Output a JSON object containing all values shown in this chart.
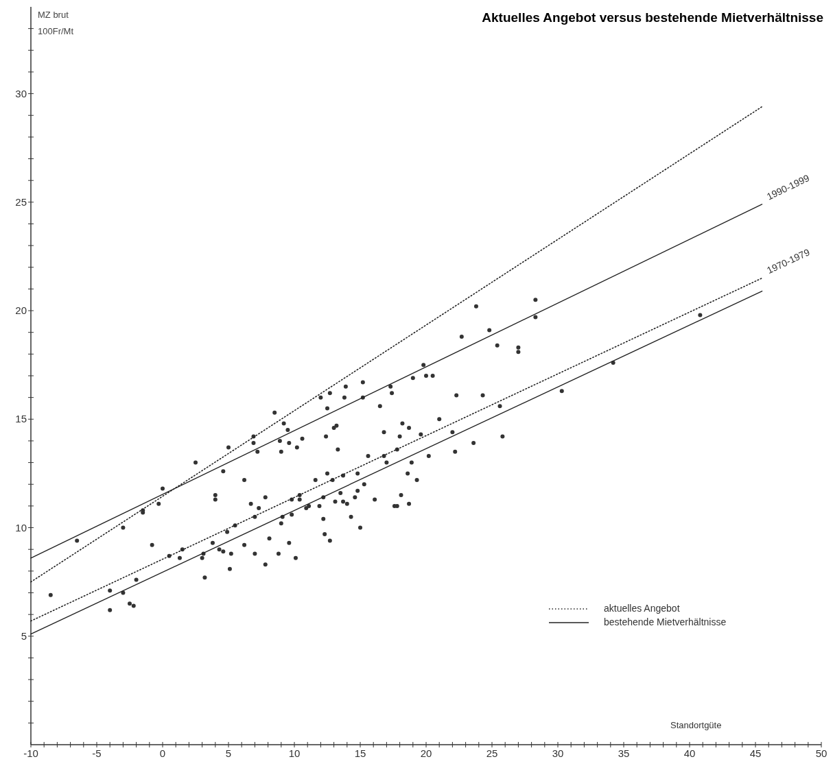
{
  "chart_data": {
    "type": "scatter",
    "title": "Aktuelles Angebot versus bestehende Mietverhältnisse",
    "xlabel": "Standortgüte",
    "ylabel": "MZ brut\n100Fr/Mt",
    "xlim": [
      -10,
      50
    ],
    "ylim": [
      0,
      34
    ],
    "xticks": [
      -10,
      {
        "value": -9,
        "label": null
      },
      {
        "value": -8,
        "label": null
      },
      {
        "value": -7,
        "label": null
      },
      {
        "value": -6,
        "label": null
      },
      -5,
      {
        "value": -4,
        "label": null
      },
      {
        "value": -3,
        "label": null
      },
      {
        "value": -2,
        "label": null
      },
      {
        "value": -1,
        "label": null
      },
      0,
      {
        "value": 1,
        "label": null
      },
      {
        "value": 2,
        "label": null
      },
      {
        "value": 3,
        "label": null
      },
      {
        "value": 4,
        "label": null
      },
      5,
      {
        "value": 6,
        "label": null
      },
      {
        "value": 7,
        "label": null
      },
      {
        "value": 8,
        "label": null
      },
      {
        "value": 9,
        "label": null
      },
      10,
      {
        "value": 11,
        "label": null
      },
      {
        "value": 12,
        "label": null
      },
      {
        "value": 13,
        "label": null
      },
      {
        "value": 14,
        "label": null
      },
      15,
      {
        "value": 16,
        "label": null
      },
      {
        "value": 17,
        "label": null
      },
      {
        "value": 18,
        "label": null
      },
      {
        "value": 19,
        "label": null
      },
      20,
      {
        "value": 21,
        "label": null
      },
      {
        "value": 22,
        "label": null
      },
      {
        "value": 23,
        "label": null
      },
      {
        "value": 24,
        "label": null
      },
      25,
      {
        "value": 26,
        "label": null
      },
      {
        "value": 27,
        "label": null
      },
      {
        "value": 28,
        "label": null
      },
      {
        "value": 29,
        "label": null
      },
      30,
      {
        "value": 31,
        "label": null
      },
      {
        "value": 32,
        "label": null
      },
      {
        "value": 33,
        "label": null
      },
      {
        "value": 34,
        "label": null
      },
      35,
      {
        "value": 36,
        "label": null
      },
      {
        "value": 37,
        "label": null
      },
      {
        "value": 38,
        "label": null
      },
      {
        "value": 39,
        "label": null
      },
      40,
      {
        "value": 41,
        "label": null
      },
      {
        "value": 42,
        "label": null
      },
      {
        "value": 43,
        "label": null
      },
      {
        "value": 44,
        "label": null
      },
      45,
      {
        "value": 46,
        "label": null
      },
      {
        "value": 47,
        "label": null
      },
      {
        "value": 48,
        "label": null
      },
      {
        "value": 49,
        "label": null
      },
      50
    ],
    "yticks": [
      {
        "value": 1,
        "label": null
      },
      {
        "value": 2,
        "label": null
      },
      {
        "value": 3,
        "label": null
      },
      {
        "value": 4,
        "label": null
      },
      5,
      {
        "value": 6,
        "label": null
      },
      {
        "value": 7,
        "label": null
      },
      {
        "value": 8,
        "label": null
      },
      {
        "value": 9,
        "label": null
      },
      10,
      {
        "value": 11,
        "label": null
      },
      {
        "value": 12,
        "label": null
      },
      {
        "value": 13,
        "label": null
      },
      {
        "value": 14,
        "label": null
      },
      15,
      {
        "value": 16,
        "label": null
      },
      {
        "value": 17,
        "label": null
      },
      {
        "value": 18,
        "label": null
      },
      {
        "value": 19,
        "label": null
      },
      20,
      {
        "value": 21,
        "label": null
      },
      {
        "value": 22,
        "label": null
      },
      {
        "value": 23,
        "label": null
      },
      {
        "value": 24,
        "label": null
      },
      25,
      {
        "value": 26,
        "label": null
      },
      {
        "value": 27,
        "label": null
      },
      {
        "value": 28,
        "label": null
      },
      {
        "value": 29,
        "label": null
      },
      30,
      {
        "value": 31,
        "label": null
      },
      {
        "value": 32,
        "label": null
      },
      {
        "value": 33,
        "label": null
      }
    ],
    "grid": false,
    "legend": "bottom right",
    "series": [
      {
        "type": "scatter",
        "color": "#333333",
        "marker": "circle",
        "x": [
          -8.5,
          -6.5,
          -4,
          -4,
          -3,
          -3,
          -2.5,
          -2.2,
          -2,
          -1.5,
          -1.5,
          -0.8,
          -0.3,
          0,
          0.5,
          1.3,
          1.5,
          2.5,
          3,
          3.1,
          3.2,
          3.8,
          4,
          4,
          4.3,
          4.6,
          4.6,
          4.9,
          5,
          5.1,
          5.2,
          5.5,
          6.2,
          6.2,
          6.7,
          6.9,
          6.9,
          7,
          7,
          7.2,
          7.3,
          7.8,
          7.8,
          8.1,
          8.5,
          8.8,
          8.9,
          9,
          9,
          9.1,
          9.2,
          9.5,
          9.6,
          9.6,
          9.8,
          9.8,
          10.1,
          10.2,
          10.4,
          10.4,
          10.6,
          10.9,
          11.1,
          11.6,
          11.9,
          12,
          12.2,
          12.2,
          12.3,
          12.4,
          12.5,
          12.5,
          12.7,
          12.7,
          12.9,
          13,
          13.1,
          13.2,
          13.3,
          13.5,
          13.7,
          13.7,
          13.8,
          13.9,
          14,
          14.3,
          14.6,
          14.8,
          14.8,
          15,
          15.2,
          15.2,
          15.3,
          15.6,
          16.1,
          16.5,
          16.8,
          16.8,
          17,
          17.3,
          17.4,
          17.6,
          17.8,
          17.8,
          18,
          18.1,
          18.2,
          18.6,
          18.7,
          18.7,
          18.9,
          19,
          19.3,
          19.6,
          19.8,
          20,
          20.2,
          20.5,
          21,
          22,
          22.2,
          22.3,
          22.7,
          23.6,
          23.8,
          24.3,
          24.8,
          25.4,
          25.6,
          25.8,
          27,
          27,
          28.3,
          28.3,
          30.3,
          34.2,
          40.8
        ],
        "values": [
          6.9,
          9.4,
          7.1,
          6.2,
          7,
          10,
          6.5,
          6.4,
          7.6,
          10.7,
          10.8,
          9.2,
          11.1,
          11.8,
          8.7,
          8.6,
          9,
          13,
          8.6,
          8.8,
          7.7,
          9.3,
          11.5,
          11.3,
          9,
          12.6,
          8.9,
          9.8,
          13.7,
          8.1,
          8.8,
          10.1,
          12.2,
          9.2,
          11.1,
          14.2,
          13.9,
          10.5,
          8.8,
          13.5,
          10.9,
          8.3,
          11.4,
          9.5,
          15.3,
          8.8,
          14,
          13.5,
          10.2,
          10.5,
          14.8,
          14.5,
          13.9,
          9.3,
          11.3,
          10.6,
          8.6,
          13.7,
          11.3,
          11.5,
          14.1,
          10.9,
          11,
          12.2,
          11,
          16,
          11.4,
          10.4,
          9.7,
          14.2,
          15.5,
          12.5,
          9.4,
          16.2,
          12.2,
          14.6,
          11.2,
          14.7,
          13.6,
          11.6,
          12.4,
          11.2,
          16,
          16.5,
          11.1,
          10.5,
          11.4,
          12.5,
          11.7,
          10,
          16.7,
          16,
          12,
          13.3,
          11.3,
          15.6,
          14.4,
          13.3,
          13,
          16.5,
          16.2,
          11,
          13.6,
          11,
          14.2,
          11.5,
          14.8,
          12.5,
          14.6,
          11.1,
          13,
          16.9,
          12.2,
          14.3,
          17.5,
          17,
          13.3,
          17,
          15,
          14.4,
          13.5,
          16.1,
          18.8,
          13.9,
          20.2,
          16.1,
          19.1,
          18.4,
          15.6,
          14.2,
          18.3,
          18.1,
          20.5,
          19.7,
          16.3,
          17.6,
          19.8
        ]
      },
      {
        "type": "line",
        "name": "aktuelles Angebot",
        "color": "#222222",
        "line_style": "dotted",
        "x": [
          -10,
          45.5
        ],
        "values": [
          7.5,
          29.4
        ]
      },
      {
        "type": "line",
        "name": "bestehende Mietverhältnisse",
        "color": "#222222",
        "line_style": "solid",
        "x": [
          -10,
          45.5
        ],
        "values": [
          8.6,
          24.9
        ]
      },
      {
        "type": "line",
        "color": "#222222",
        "line_style": "dotted",
        "x": [
          -10,
          45.5
        ],
        "values": [
          5.7,
          21.5
        ]
      },
      {
        "type": "line",
        "color": "#222222",
        "line_style": "solid",
        "x": [
          -10,
          45.5
        ],
        "values": [
          5.1,
          20.9
        ]
      }
    ],
    "annotations": [
      {
        "text": "1990-1999",
        "x": 45.5,
        "y": 24.9
      },
      {
        "text": "1970-1979",
        "x": 45.5,
        "y": 21.5
      }
    ]
  }
}
